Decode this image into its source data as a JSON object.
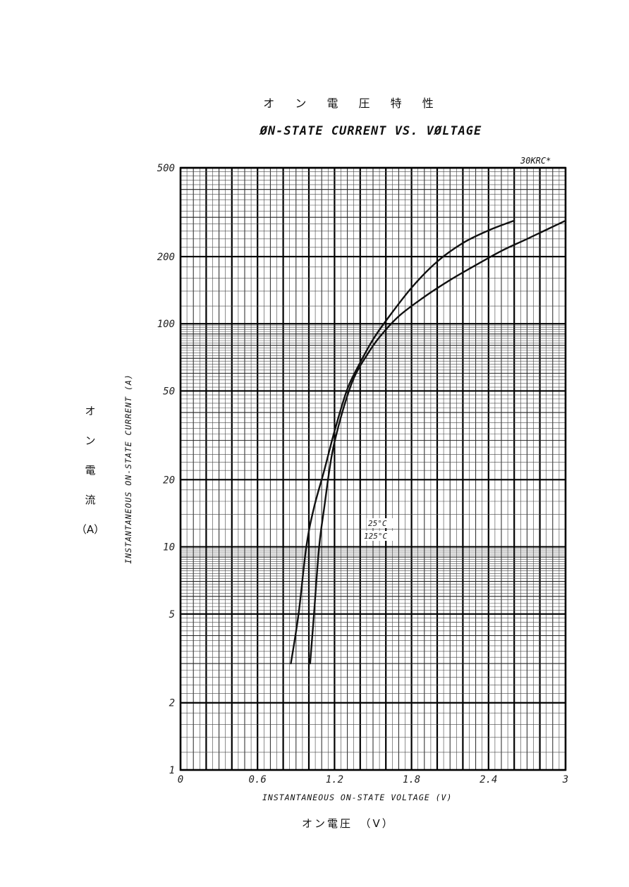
{
  "chart_data": {
    "type": "line",
    "title_jp": "オ ン 電 圧 特 性",
    "title": "ØN-STATE CURRENT VS. VØLTAGE",
    "model": "30KRC*",
    "ylabel": "INSTANTANEOUS ON-STATE CURRENT (A)",
    "ylabel_jp": [
      "オ",
      "ン",
      "電",
      "流",
      "（A）"
    ],
    "xlabel": "INSTANTANEOUS ON-STATE VOLTAGE (V)",
    "xlabel_jp": "オン電圧　（V）",
    "xlim": [
      0,
      3
    ],
    "ylim": [
      1,
      500
    ],
    "y_scale": "log",
    "grid": true,
    "x_ticks": [
      {
        "value": 0,
        "label": "0"
      },
      {
        "value": 0.6,
        "label": "0.6"
      },
      {
        "value": 1.2,
        "label": "1.2"
      },
      {
        "value": 1.8,
        "label": "1.8"
      },
      {
        "value": 2.4,
        "label": "2.4"
      },
      {
        "value": 3,
        "label": "3"
      }
    ],
    "y_ticks": [
      {
        "value": 1,
        "label": "1"
      },
      {
        "value": 2,
        "label": "2"
      },
      {
        "value": 5,
        "label": "5"
      },
      {
        "value": 10,
        "label": "10"
      },
      {
        "value": 20,
        "label": "20"
      },
      {
        "value": 50,
        "label": "50"
      },
      {
        "value": 100,
        "label": "100"
      },
      {
        "value": 200,
        "label": "200"
      },
      {
        "value": 500,
        "label": "500"
      }
    ],
    "series": [
      {
        "name": "25°C",
        "color": "#111111",
        "x": [
          0.86,
          0.92,
          0.98,
          1.04,
          1.12,
          1.2,
          1.3,
          1.4,
          1.5,
          1.6,
          1.8,
          2.0,
          2.2,
          2.4,
          2.6
        ],
        "y": [
          3,
          5,
          10,
          15,
          22,
          33,
          51,
          67,
          85,
          103,
          145,
          190,
          230,
          262,
          290
        ]
      },
      {
        "name": "125°C",
        "color": "#111111",
        "x": [
          1.01,
          1.04,
          1.08,
          1.12,
          1.18,
          1.26,
          1.35,
          1.45,
          1.55,
          1.7,
          1.9,
          2.1,
          2.3,
          2.5,
          2.7,
          3.0
        ],
        "y": [
          3,
          5,
          10,
          15,
          26,
          40,
          57,
          72,
          87,
          108,
          132,
          157,
          183,
          212,
          240,
          290
        ]
      }
    ],
    "annotations": [
      "25°C",
      "125°C"
    ]
  }
}
